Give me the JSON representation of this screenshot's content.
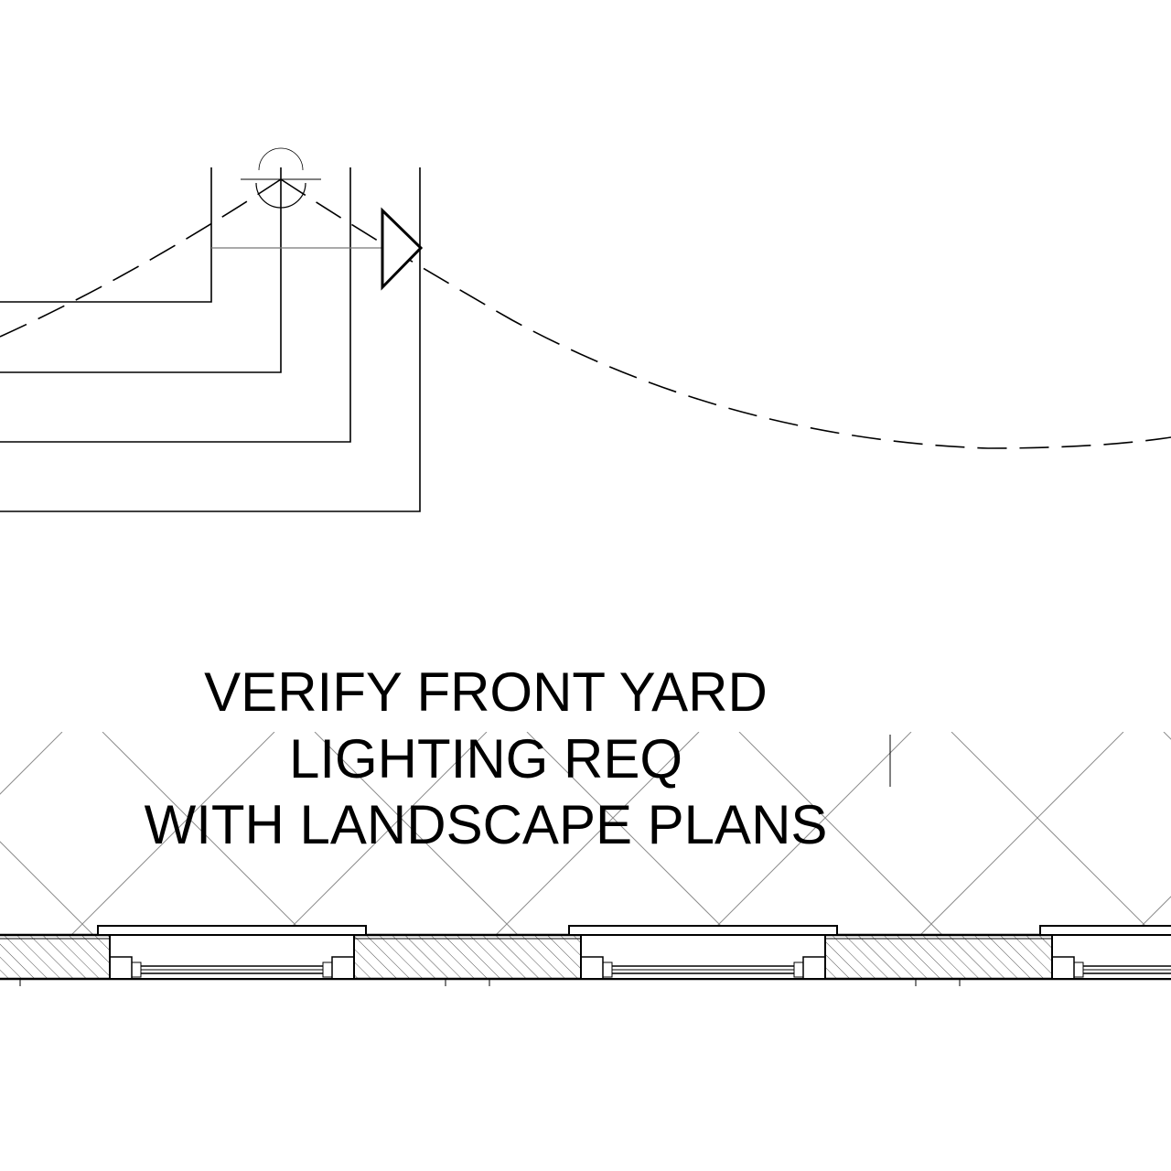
{
  "note": {
    "lines": [
      "VERIFY FRONT YARD",
      "LIGHTING REQ",
      "WITH LANDSCAPE PLANS"
    ]
  },
  "colors": {
    "ink": "#000000",
    "hatch": "#8c8c8c",
    "background": "#ffffff"
  },
  "symbols": {
    "light_fixture": "wall-light-fixture-icon",
    "switch_marker": "triangle-marker-icon"
  },
  "window_units": 3
}
